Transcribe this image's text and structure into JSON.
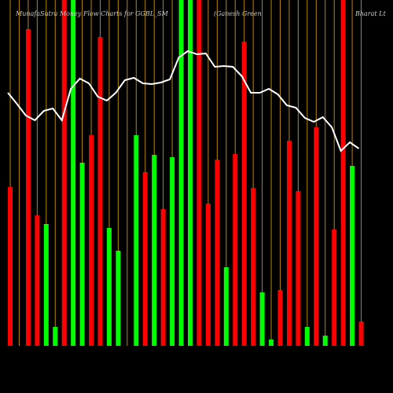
{
  "chart_data": {
    "type": "bar",
    "title": "MunafaSutra  Money Flow  Charts for GGBL_SM",
    "subtitle": "(Ganesh Green",
    "subtitle2": "Bharat Lt",
    "categories": [
      null,
      null,
      null,
      null,
      null,
      null,
      null,
      null,
      null,
      null,
      null,
      null,
      null,
      null,
      null,
      null,
      null,
      null,
      null,
      null,
      null,
      null,
      null,
      null,
      null,
      null,
      null,
      null,
      null,
      null,
      null,
      null,
      null,
      null,
      null,
      null,
      null,
      null,
      null,
      null
    ],
    "values": [
      202,
      null,
      403,
      166,
      155,
      24,
      440,
      440,
      233,
      268,
      393,
      150,
      121,
      null,
      268,
      221,
      243,
      174,
      240,
      440,
      440,
      440,
      181,
      237,
      100,
      244,
      387,
      201,
      68,
      8,
      71,
      261,
      197,
      24,
      278,
      13,
      148,
      440,
      229,
      31
    ],
    "colors": [
      "#ff0000",
      null,
      "#ff0000",
      "#ff0000",
      "#00ff00",
      "#00ff00",
      "#ff0000",
      "#00ff00",
      "#00ff00",
      "#ff0000",
      "#ff0000",
      "#00ff00",
      "#00ff00",
      null,
      "#00ff00",
      "#ff0000",
      "#00ff00",
      "#ff0000",
      "#00ff00",
      "#00ff00",
      "#00ff00",
      "#ff0000",
      "#ff0000",
      "#ff0000",
      "#00ff00",
      "#ff0000",
      "#ff0000",
      "#ff0000",
      "#00ff00",
      "#00ff00",
      "#ff0000",
      "#ff0000",
      "#ff0000",
      "#00ff00",
      "#ff0000",
      "#00ff00",
      "#ff0000",
      "#ff0000",
      "#00ff00",
      "#ff0000"
    ],
    "line_values": [
      322,
      308,
      293,
      287,
      299,
      302,
      287,
      327,
      340,
      334,
      317,
      312,
      322,
      338,
      341,
      334,
      333,
      335,
      339,
      367,
      375,
      371,
      372,
      355,
      356,
      355,
      343,
      322,
      322,
      327,
      320,
      306,
      303,
      290,
      285,
      291,
      278,
      248,
      259,
      251
    ],
    "line_color": "#ffffff",
    "grid_color": "#b8860b",
    "ylim": [
      0,
      440
    ]
  }
}
